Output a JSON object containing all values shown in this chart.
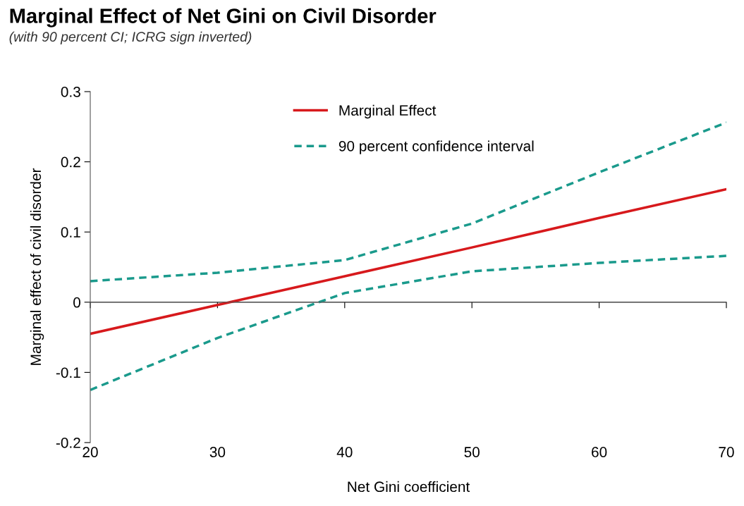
{
  "chart_data": {
    "type": "line",
    "title": "Marginal Effect of Net Gini on Civil Disorder",
    "subtitle": "(with 90 percent CI; ICRG sign inverted)",
    "xlabel": "Net Gini coefficient",
    "ylabel": "Marginal effect of civil disorder",
    "x": [
      20,
      30,
      40,
      50,
      60,
      70
    ],
    "series": [
      {
        "name": "Marginal Effect",
        "color": "#d7191c",
        "values": [
          -0.045,
          -0.004,
          0.037,
          0.078,
          0.12,
          0.161
        ],
        "line_style": "solid"
      },
      {
        "name": "90 percent confidence interval",
        "color": "#1a9a8c",
        "values": [
          0.03,
          0.042,
          0.06,
          0.112,
          0.185,
          0.256
        ],
        "line_style": "dashed"
      },
      {
        "color": "#1a9a8c",
        "values": [
          -0.125,
          -0.051,
          0.013,
          0.044,
          0.056,
          0.066
        ],
        "line_style": "dashed"
      }
    ],
    "xlim": [
      20,
      70
    ],
    "xticks": [
      20,
      30,
      40,
      50,
      60,
      70
    ],
    "ylim": [
      -0.2,
      0.3
    ],
    "yticks": [
      {
        "value": -0.2,
        "label": "-0.2"
      },
      {
        "value": -0.1,
        "label": "-0.1"
      },
      0,
      0.1,
      0.2,
      0.3
    ],
    "ref_lines": [
      {
        "axis": "y",
        "value": 0,
        "color": "#555555",
        "line_style": "solid"
      }
    ],
    "grid": false,
    "legend": "top left",
    "marker": "none"
  }
}
